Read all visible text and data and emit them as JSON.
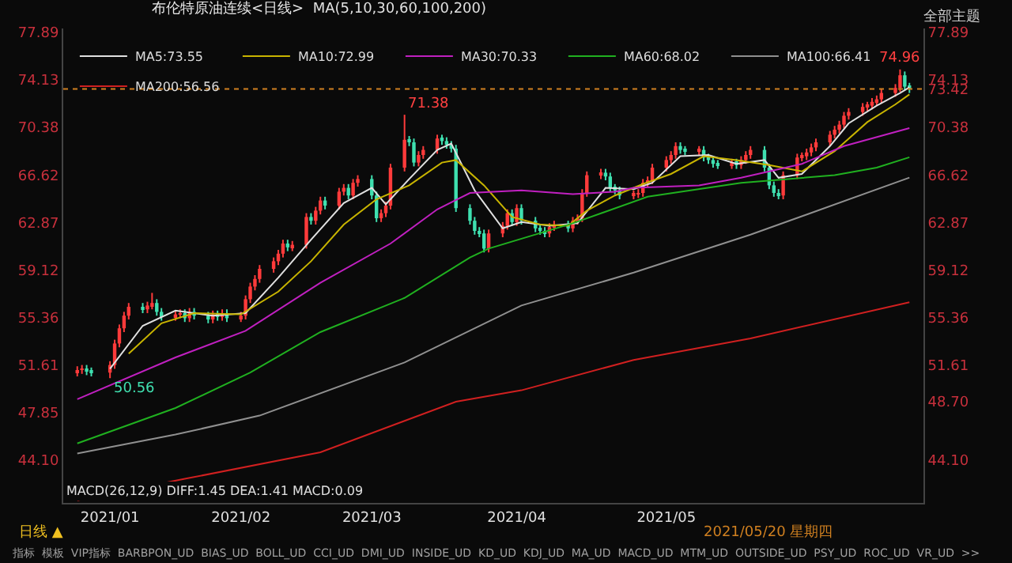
{
  "chart_data": {
    "type": "candlestick",
    "title": "布伦特原油连续<日线>",
    "subtitle": "MA(5,10,30,60,100,200)",
    "x": [
      "2020-12-28",
      "2020-12-29",
      "2020-12-30",
      "2020-12-31",
      "2021-01-04",
      "2021-01-05",
      "2021-01-06",
      "2021-01-07",
      "2021-01-08",
      "2021-01-11",
      "2021-01-12",
      "2021-01-13",
      "2021-01-14",
      "2021-01-15",
      "2021-01-18",
      "2021-01-19",
      "2021-01-20",
      "2021-01-21",
      "2021-01-22",
      "2021-01-25",
      "2021-01-26",
      "2021-01-27",
      "2021-01-28",
      "2021-01-29",
      "2021-02-01",
      "2021-02-02",
      "2021-02-03",
      "2021-02-04",
      "2021-02-05",
      "2021-02-08",
      "2021-02-09",
      "2021-02-10",
      "2021-02-11",
      "2021-02-12",
      "2021-02-15",
      "2021-02-16",
      "2021-02-17",
      "2021-02-18",
      "2021-02-19",
      "2021-02-22",
      "2021-02-23",
      "2021-02-24",
      "2021-02-25",
      "2021-02-26",
      "2021-03-01",
      "2021-03-02",
      "2021-03-03",
      "2021-03-04",
      "2021-03-05",
      "2021-03-08",
      "2021-03-09",
      "2021-03-10",
      "2021-03-11",
      "2021-03-12",
      "2021-03-15",
      "2021-03-16",
      "2021-03-17",
      "2021-03-18",
      "2021-03-19",
      "2021-03-22",
      "2021-03-23",
      "2021-03-24",
      "2021-03-25",
      "2021-03-26",
      "2021-03-29",
      "2021-03-30",
      "2021-03-31",
      "2021-04-01",
      "2021-04-02",
      "2021-04-05",
      "2021-04-06",
      "2021-04-07",
      "2021-04-08",
      "2021-04-09",
      "2021-04-12",
      "2021-04-13",
      "2021-04-14",
      "2021-04-15",
      "2021-04-16",
      "2021-04-19",
      "2021-04-20",
      "2021-04-21",
      "2021-04-22",
      "2021-04-23",
      "2021-04-26",
      "2021-04-27",
      "2021-04-28",
      "2021-04-29",
      "2021-04-30",
      "2021-05-03",
      "2021-05-04",
      "2021-05-05",
      "2021-05-06",
      "2021-05-07",
      "2021-05-10",
      "2021-05-11",
      "2021-05-12",
      "2021-05-13",
      "2021-05-14",
      "2021-05-17",
      "2021-05-18",
      "2021-05-19",
      "2021-05-20",
      "2021-05-21",
      "2021-05-24",
      "2021-05-25",
      "2021-05-26",
      "2021-05-27",
      "2021-05-28",
      "2021-05-31",
      "2021-06-01",
      "2021-06-02",
      "2021-06-03",
      "2021-06-04",
      "2021-06-07",
      "2021-06-08",
      "2021-06-09",
      "2021-06-10",
      "2021-06-11",
      "2021-06-14",
      "2021-06-15",
      "2021-06-16",
      "2021-06-17",
      "2021-06-18",
      "2021-06-21",
      "2021-06-22",
      "2021-06-23",
      "2021-06-24"
    ],
    "ohlc": [
      [
        51.0,
        51.5,
        50.7,
        51.2
      ],
      [
        51.2,
        51.6,
        50.9,
        51.3
      ],
      [
        51.3,
        51.6,
        50.8,
        51.1
      ],
      [
        51.1,
        51.4,
        50.7,
        51.0
      ],
      [
        51.0,
        51.9,
        50.56,
        51.6
      ],
      [
        51.6,
        53.6,
        51.3,
        53.3
      ],
      [
        53.3,
        54.8,
        53.0,
        54.5
      ],
      [
        54.5,
        55.8,
        54.2,
        55.5
      ],
      [
        55.5,
        56.5,
        55.2,
        56.2
      ],
      [
        56.2,
        56.5,
        55.7,
        56.0
      ],
      [
        56.0,
        56.6,
        55.7,
        56.3
      ],
      [
        56.3,
        57.3,
        56.0,
        56.5
      ],
      [
        56.5,
        56.8,
        55.5,
        55.8
      ],
      [
        55.8,
        56.1,
        55.1,
        55.4
      ],
      [
        55.4,
        55.9,
        55.1,
        55.6
      ],
      [
        55.6,
        56.0,
        55.3,
        55.7
      ],
      [
        55.7,
        56.0,
        55.0,
        55.3
      ],
      [
        55.3,
        56.1,
        55.0,
        55.8
      ],
      [
        55.8,
        56.1,
        55.2,
        55.5
      ],
      [
        55.5,
        55.8,
        54.9,
        55.2
      ],
      [
        55.2,
        55.9,
        54.9,
        55.6
      ],
      [
        55.6,
        55.9,
        55.1,
        55.4
      ],
      [
        55.4,
        56.0,
        55.1,
        55.7
      ],
      [
        55.7,
        56.0,
        55.0,
        55.3
      ],
      [
        55.3,
        55.8,
        55.0,
        55.5
      ],
      [
        55.5,
        57.1,
        55.2,
        56.8
      ],
      [
        56.8,
        58.1,
        56.5,
        57.8
      ],
      [
        57.8,
        58.7,
        57.5,
        58.4
      ],
      [
        58.4,
        59.5,
        58.1,
        59.2
      ],
      [
        59.2,
        60.1,
        58.9,
        59.8
      ],
      [
        59.8,
        60.7,
        59.5,
        60.4
      ],
      [
        60.4,
        61.5,
        60.1,
        61.2
      ],
      [
        61.2,
        61.5,
        60.6,
        60.9
      ],
      [
        60.9,
        61.4,
        60.6,
        61.1
      ],
      [
        61.1,
        63.6,
        60.8,
        63.3
      ],
      [
        63.3,
        63.6,
        62.7,
        63.0
      ],
      [
        63.0,
        64.1,
        62.7,
        63.8
      ],
      [
        63.8,
        64.9,
        63.5,
        64.6
      ],
      [
        64.6,
        64.9,
        63.9,
        64.2
      ],
      [
        64.2,
        65.6,
        63.9,
        65.3
      ],
      [
        65.3,
        65.9,
        65.0,
        65.6
      ],
      [
        65.6,
        65.9,
        64.7,
        65.0
      ],
      [
        65.0,
        66.3,
        64.7,
        66.0
      ],
      [
        66.0,
        66.6,
        65.7,
        66.3
      ],
      [
        66.3,
        66.6,
        64.7,
        65.0
      ],
      [
        65.0,
        65.3,
        62.9,
        63.2
      ],
      [
        63.2,
        63.9,
        62.9,
        63.6
      ],
      [
        63.6,
        64.5,
        63.3,
        64.2
      ],
      [
        64.2,
        67.5,
        63.9,
        67.2
      ],
      [
        67.2,
        71.38,
        66.9,
        69.4
      ],
      [
        69.4,
        69.7,
        68.9,
        69.2
      ],
      [
        69.2,
        69.5,
        67.3,
        67.6
      ],
      [
        67.6,
        68.5,
        67.3,
        68.2
      ],
      [
        68.2,
        68.9,
        67.9,
        68.6
      ],
      [
        68.6,
        69.8,
        68.3,
        69.5
      ],
      [
        69.5,
        69.8,
        69.0,
        69.3
      ],
      [
        69.3,
        69.6,
        68.7,
        69.0
      ],
      [
        69.0,
        69.3,
        68.4,
        68.7
      ],
      [
        68.7,
        69.0,
        63.7,
        64.0
      ],
      [
        64.0,
        64.3,
        62.7,
        63.0
      ],
      [
        63.0,
        63.3,
        61.9,
        62.2
      ],
      [
        62.2,
        62.5,
        61.7,
        62.0
      ],
      [
        62.0,
        62.3,
        60.5,
        60.8
      ],
      [
        60.8,
        62.3,
        60.5,
        62.0
      ],
      [
        62.0,
        62.9,
        61.7,
        62.6
      ],
      [
        62.6,
        63.9,
        62.3,
        63.6
      ],
      [
        63.6,
        63.9,
        62.6,
        62.9
      ],
      [
        62.9,
        64.3,
        62.6,
        64.0
      ],
      [
        64.0,
        64.3,
        62.7,
        63.0
      ],
      [
        63.0,
        63.3,
        62.1,
        62.4
      ],
      [
        62.4,
        62.7,
        61.9,
        62.2
      ],
      [
        62.2,
        62.5,
        61.7,
        62.0
      ],
      [
        62.0,
        62.8,
        61.7,
        62.5
      ],
      [
        62.5,
        63.0,
        62.2,
        62.7
      ],
      [
        62.7,
        63.0,
        62.1,
        62.4
      ],
      [
        62.4,
        63.3,
        62.1,
        63.0
      ],
      [
        63.0,
        63.5,
        62.7,
        63.2
      ],
      [
        63.2,
        65.5,
        62.9,
        65.2
      ],
      [
        65.2,
        66.9,
        64.9,
        66.6
      ],
      [
        66.6,
        67.1,
        66.3,
        66.8
      ],
      [
        66.8,
        67.1,
        66.2,
        66.5
      ],
      [
        66.5,
        66.8,
        65.3,
        65.6
      ],
      [
        65.6,
        65.9,
        65.1,
        65.4
      ],
      [
        65.4,
        65.7,
        64.7,
        65.0
      ],
      [
        65.0,
        65.4,
        64.7,
        65.1
      ],
      [
        65.1,
        65.5,
        64.8,
        65.2
      ],
      [
        65.2,
        66.3,
        64.9,
        66.0
      ],
      [
        66.0,
        66.5,
        65.7,
        66.2
      ],
      [
        66.2,
        67.5,
        65.9,
        67.2
      ],
      [
        67.2,
        68.1,
        66.9,
        67.8
      ],
      [
        67.8,
        68.5,
        67.5,
        68.2
      ],
      [
        68.2,
        69.2,
        67.9,
        68.9
      ],
      [
        68.9,
        69.2,
        68.3,
        68.6
      ],
      [
        68.6,
        68.9,
        68.2,
        68.5
      ],
      [
        68.5,
        68.9,
        68.2,
        68.6
      ],
      [
        68.6,
        68.9,
        67.7,
        68.0
      ],
      [
        68.0,
        68.3,
        67.5,
        67.8
      ],
      [
        67.8,
        68.1,
        67.2,
        67.5
      ],
      [
        67.5,
        67.8,
        67.1,
        67.4
      ],
      [
        67.4,
        67.9,
        67.1,
        67.6
      ],
      [
        67.6,
        67.9,
        67.1,
        67.4
      ],
      [
        67.4,
        68.1,
        67.1,
        67.8
      ],
      [
        67.8,
        68.5,
        67.5,
        68.2
      ],
      [
        68.2,
        68.9,
        67.9,
        68.6
      ],
      [
        68.6,
        68.9,
        66.9,
        67.2
      ],
      [
        67.2,
        67.5,
        65.5,
        65.8
      ],
      [
        65.8,
        66.1,
        64.9,
        65.2
      ],
      [
        65.2,
        65.5,
        64.7,
        65.0
      ],
      [
        65.0,
        66.9,
        64.7,
        66.6
      ],
      [
        66.6,
        68.3,
        66.3,
        68.0
      ],
      [
        68.0,
        68.4,
        67.7,
        68.1
      ],
      [
        68.1,
        68.7,
        67.8,
        68.4
      ],
      [
        68.4,
        69.1,
        68.1,
        68.8
      ],
      [
        68.8,
        69.5,
        68.5,
        69.2
      ],
      [
        69.2,
        70.1,
        68.9,
        69.8
      ],
      [
        69.8,
        70.5,
        69.5,
        70.2
      ],
      [
        70.2,
        70.9,
        69.9,
        70.6
      ],
      [
        70.6,
        71.6,
        70.3,
        71.3
      ],
      [
        71.3,
        71.9,
        71.0,
        71.6
      ],
      [
        71.6,
        72.3,
        71.3,
        72.0
      ],
      [
        72.0,
        72.4,
        71.7,
        72.1
      ],
      [
        72.1,
        72.7,
        71.8,
        72.4
      ],
      [
        72.4,
        72.9,
        72.1,
        72.6
      ],
      [
        72.6,
        73.4,
        72.3,
        73.1
      ],
      [
        73.1,
        73.8,
        72.8,
        73.5
      ],
      [
        73.5,
        74.96,
        73.2,
        74.5
      ],
      [
        74.5,
        74.8,
        73.3,
        73.6
      ],
      [
        73.6,
        73.9,
        73.1,
        73.42
      ]
    ],
    "series": [
      {
        "name": "MA5:73.55",
        "type": "line",
        "color": "#e0e0e0",
        "x": [
          "2021-01-04",
          "2021-01-11",
          "2021-01-18",
          "2021-01-26",
          "2021-02-02",
          "2021-02-09",
          "2021-02-16",
          "2021-02-23",
          "2021-03-01",
          "2021-03-04",
          "2021-03-09",
          "2021-03-15",
          "2021-03-18",
          "2021-03-23",
          "2021-03-29",
          "2021-04-02",
          "2021-04-08",
          "2021-04-14",
          "2021-04-20",
          "2021-04-26",
          "2021-04-30",
          "2021-05-06",
          "2021-05-12",
          "2021-05-18",
          "2021-05-24",
          "2021-05-27",
          "2021-06-01",
          "2021-06-07",
          "2021-06-11",
          "2021-06-17",
          "2021-06-22",
          "2021-06-24"
        ],
        "values": [
          51.3,
          54.7,
          55.9,
          55.5,
          55.7,
          58.5,
          61.5,
          64.4,
          65.6,
          64.3,
          66.3,
          68.6,
          69.1,
          65.4,
          62.4,
          62.9,
          62.6,
          62.8,
          65.6,
          65.5,
          66.0,
          68.1,
          68.2,
          67.5,
          67.8,
          66.4,
          66.7,
          68.9,
          70.7,
          72.1,
          73.1,
          73.55
        ]
      },
      {
        "name": "MA10:72.99",
        "type": "line",
        "color": "#c8b400",
        "x": [
          "2021-01-08",
          "2021-01-15",
          "2021-01-22",
          "2021-02-01",
          "2021-02-09",
          "2021-02-16",
          "2021-02-23",
          "2021-03-02",
          "2021-03-09",
          "2021-03-16",
          "2021-03-19",
          "2021-03-25",
          "2021-03-31",
          "2021-04-06",
          "2021-04-12",
          "2021-04-16",
          "2021-04-22",
          "2021-04-28",
          "2021-05-04",
          "2021-05-11",
          "2021-05-18",
          "2021-05-25",
          "2021-06-01",
          "2021-06-08",
          "2021-06-15",
          "2021-06-21",
          "2021-06-24"
        ],
        "values": [
          52.5,
          54.9,
          55.7,
          55.6,
          57.4,
          59.8,
          62.7,
          64.7,
          65.8,
          67.6,
          67.8,
          65.8,
          63.3,
          62.7,
          62.6,
          63.8,
          65.0,
          65.9,
          66.7,
          68.1,
          67.8,
          67.4,
          66.9,
          68.5,
          70.8,
          72.2,
          72.99
        ]
      },
      {
        "name": "MA30:70.33",
        "type": "line",
        "color": "#c020c0",
        "x": [
          "2020-12-28",
          "2021-01-18",
          "2021-02-02",
          "2021-02-18",
          "2021-03-05",
          "2021-03-15",
          "2021-03-22",
          "2021-04-02",
          "2021-04-13",
          "2021-04-22",
          "2021-04-26",
          "2021-05-10",
          "2021-05-19",
          "2021-05-25",
          "2021-06-01",
          "2021-06-10",
          "2021-06-24"
        ],
        "values": [
          48.9,
          52.2,
          54.3,
          58.1,
          61.2,
          63.9,
          65.2,
          65.4,
          65.1,
          65.3,
          65.6,
          65.8,
          66.4,
          66.9,
          67.5,
          68.9,
          70.33
        ]
      },
      {
        "name": "MA60:68.02",
        "type": "line",
        "color": "#20b020",
        "x": [
          "2020-12-28",
          "2021-01-18",
          "2021-02-03",
          "2021-02-18",
          "2021-03-08",
          "2021-03-22",
          "2021-03-26",
          "2021-04-13",
          "2021-04-29",
          "2021-05-19",
          "2021-06-08",
          "2021-06-17",
          "2021-06-24"
        ],
        "values": [
          45.4,
          48.2,
          51.0,
          54.2,
          56.9,
          60.1,
          60.8,
          62.8,
          64.9,
          66.0,
          66.6,
          67.2,
          68.02
        ]
      },
      {
        "name": "MA100:66.41",
        "type": "line",
        "color": "#909090",
        "x": [
          "2020-12-28",
          "2021-01-18",
          "2021-02-05",
          "2021-03-08",
          "2021-04-02",
          "2021-04-26",
          "2021-05-21",
          "2021-06-24"
        ],
        "values": [
          44.6,
          46.1,
          47.6,
          51.8,
          56.3,
          58.9,
          61.9,
          66.41
        ]
      },
      {
        "name": "MA200:56.56",
        "type": "line",
        "color": "#d02020",
        "x": [
          "2020-12-28",
          "2021-01-20",
          "2021-02-18",
          "2021-03-19",
          "2021-04-02",
          "2021-04-26",
          "2021-05-21",
          "2021-06-24"
        ],
        "values": [
          40.9,
          42.6,
          44.7,
          48.7,
          49.6,
          52.0,
          53.7,
          56.56
        ]
      }
    ],
    "xlim": [
      "2020-12-25",
      "2021-06-27"
    ],
    "xticks": [
      {
        "value": "2021-01-04",
        "label": "2021/01"
      },
      {
        "value": "2021-02-01",
        "label": "2021/02"
      },
      {
        "value": "2021-03-01",
        "label": "2021/03"
      },
      {
        "value": "2021-04-01",
        "label": "2021/04"
      },
      {
        "value": "2021-05-03",
        "label": "2021/05"
      }
    ],
    "ylim": [
      40.7,
      78.2
    ],
    "yticks": [
      77.89,
      74.13,
      70.38,
      66.62,
      62.87,
      59.12,
      55.36,
      51.61,
      47.85,
      {
        "value": 44.1,
        "label": "44.10"
      }
    ],
    "y2lim": [
      40.7,
      78.2
    ],
    "y2ticks": [
      77.89,
      74.13,
      73.42,
      70.38,
      66.62,
      62.87,
      59.12,
      55.36,
      51.61,
      {
        "value": 48.7,
        "label": "48.70"
      },
      {
        "value": 44.1,
        "label": "44.10"
      }
    ],
    "ref_lines": [
      {
        "axis": "y",
        "value": 73.42,
        "color": "#d08020",
        "line_style": "dotted"
      }
    ],
    "legend": "top left",
    "annotations": [
      "71.38",
      "74.96",
      "50.56",
      "全部主题",
      "MACD(26,12,9) DIFF:1.45 DEA:1.41 MACD:0.09",
      "日线 ▲",
      "2021/05/20 星期四",
      "指标  模板  VIP指标  BARBPON_UD  BIAS_UD  BOLL_UD  CCI_UD  DMI_UD  INSIDE_UD  KD_UD  KDJ_UD  MA_UD  MACD_UD  MTM_UD  OUTSIDE_UD  PSY_UD  ROC_UD  VR_UD  >>"
    ]
  }
}
